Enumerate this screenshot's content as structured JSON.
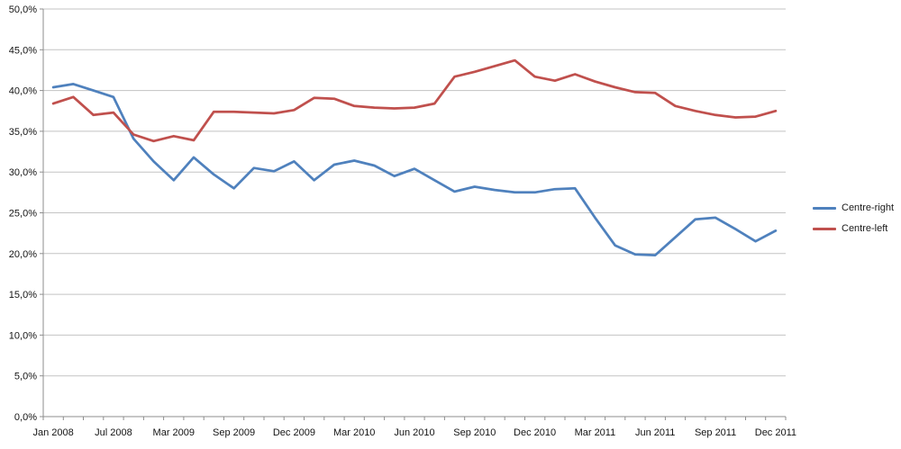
{
  "chart_data": {
    "type": "line",
    "title": "",
    "x_axis": {
      "num_points": 37,
      "tick_label_indices": [
        0,
        3,
        6,
        9,
        12,
        15,
        18,
        21,
        24,
        27,
        30,
        33,
        36
      ],
      "tick_labels": [
        "Jan 2008",
        "Jul 2008",
        "Mar 2009",
        "Sep 2009",
        "Dec 2009",
        "Mar 2010",
        "Jun 2010",
        "Sep 2010",
        "Dec 2010",
        "Mar 2011",
        "Jun 2011",
        "Sep 2011",
        "Dec 2011"
      ]
    },
    "y_axis": {
      "min": 0,
      "max": 50,
      "step": 5,
      "tick_labels": [
        "0,0%",
        "5,0%",
        "10,0%",
        "15,0%",
        "20,0%",
        "25,0%",
        "30,0%",
        "35,0%",
        "40,0%",
        "45,0%",
        "50,0%"
      ]
    },
    "grid": "horizontal",
    "legend_position": "right",
    "series": [
      {
        "name": "Centre-right",
        "color": "#4F81BD",
        "values": [
          40.4,
          40.8,
          40.0,
          39.2,
          34.1,
          31.3,
          29.0,
          31.8,
          29.7,
          28.0,
          30.5,
          30.1,
          31.3,
          29.0,
          30.9,
          31.4,
          30.8,
          29.5,
          30.4,
          29.0,
          27.6,
          28.2,
          27.8,
          27.5,
          27.5,
          27.9,
          28.0,
          24.4,
          21.0,
          19.9,
          19.8,
          22.0,
          24.2,
          24.4,
          23.0,
          21.5,
          22.8
        ]
      },
      {
        "name": "Centre-left",
        "color": "#C0504D",
        "values": [
          38.4,
          39.2,
          37.0,
          37.3,
          34.6,
          33.8,
          34.4,
          33.9,
          37.4,
          37.4,
          37.3,
          37.2,
          37.6,
          39.1,
          39.0,
          38.1,
          37.9,
          37.8,
          37.9,
          38.4,
          41.7,
          42.3,
          43.0,
          43.7,
          41.7,
          41.2,
          42.0,
          41.1,
          40.4,
          39.8,
          39.7,
          38.1,
          37.5,
          37.0,
          36.7,
          36.8,
          37.5
        ]
      }
    ]
  },
  "legend": {
    "items": [
      {
        "label": "Centre-right",
        "color": "#4F81BD"
      },
      {
        "label": "Centre-left",
        "color": "#C0504D"
      }
    ]
  },
  "styles": {
    "background": "#FFFFFF",
    "gridline_color": "#C3C3C3",
    "axis_color": "#8E8E8E",
    "label_color": "#141414"
  }
}
